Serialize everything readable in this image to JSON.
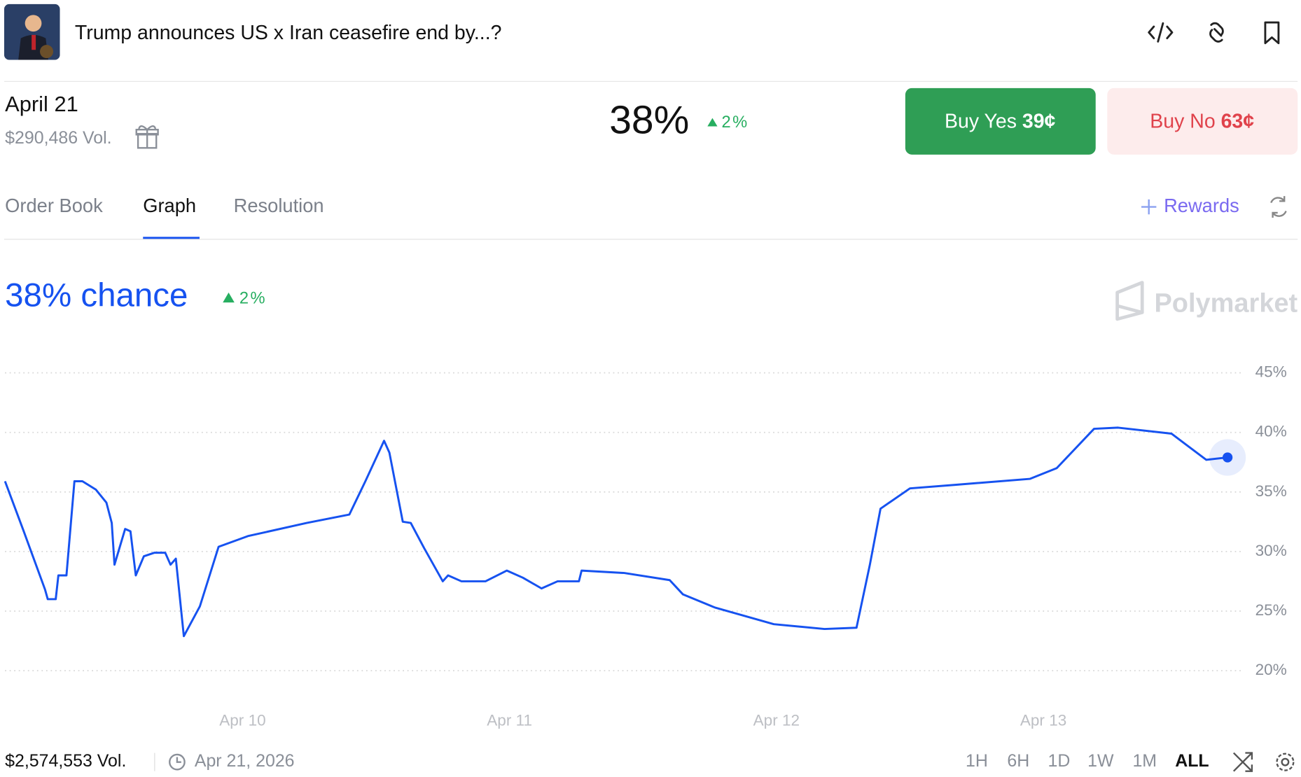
{
  "header": {
    "title": "Trump announces US x Iran ceasefire end by...?"
  },
  "market": {
    "date": "April 21",
    "volume": "$290,486 Vol.",
    "chance": "38%",
    "change": "2%",
    "buy_yes": "Buy Yes",
    "yes_price": "39¢",
    "buy_no": "Buy No",
    "no_price": "63¢"
  },
  "tabs": [
    "Order Book",
    "Graph",
    "Resolution"
  ],
  "rewards": "Rewards",
  "chart_data": {
    "type": "line",
    "title": "38% chance",
    "change": "2%",
    "brand": "Polymarket",
    "color": "#1652f0",
    "x": [
      9.11,
      9.18,
      9.26,
      9.27,
      9.3,
      9.31,
      9.34,
      9.37,
      9.4,
      9.45,
      9.49,
      9.51,
      9.52,
      9.56,
      9.58,
      9.6,
      9.63,
      9.67,
      9.71,
      9.73,
      9.75,
      9.78,
      9.84,
      9.91,
      10.02,
      10.24,
      10.4,
      10.46,
      10.53,
      10.55,
      10.6,
      10.63,
      10.68,
      10.75,
      10.77,
      10.82,
      10.91,
      10.99,
      11.05,
      11.12,
      11.18,
      11.26,
      11.27,
      11.43,
      11.6,
      11.65,
      11.77,
      11.99,
      12.18,
      12.3,
      12.35,
      12.39,
      12.5,
      12.67,
      12.95,
      13.05,
      13.19,
      13.28,
      13.48,
      13.61,
      13.69
    ],
    "values": [
      35.9,
      31.7,
      26.8,
      26.0,
      26.0,
      28.0,
      28.0,
      35.9,
      35.9,
      35.2,
      34.1,
      32.4,
      28.9,
      31.9,
      31.7,
      28.0,
      29.6,
      29.9,
      29.9,
      28.9,
      29.4,
      22.9,
      25.4,
      30.4,
      31.3,
      32.4,
      33.1,
      35.9,
      39.3,
      38.3,
      32.5,
      32.4,
      30.3,
      27.5,
      28.0,
      27.5,
      27.5,
      28.4,
      27.8,
      26.9,
      27.5,
      27.5,
      28.4,
      28.2,
      27.6,
      26.4,
      25.3,
      23.9,
      23.5,
      23.6,
      28.9,
      33.6,
      35.3,
      35.6,
      36.1,
      37.0,
      40.3,
      40.4,
      39.9,
      37.7,
      37.9
    ],
    "xlim": [
      9.11,
      13.8
    ],
    "xticks": [
      {
        "value": 10,
        "label": "Apr 10"
      },
      {
        "value": 11,
        "label": "Apr 11"
      },
      {
        "value": 12,
        "label": "Apr 12"
      },
      {
        "value": 13,
        "label": "Apr 13"
      }
    ],
    "ylim": [
      17.7,
      47
    ],
    "yticks": [
      {
        "value": 20,
        "label": "20%"
      },
      {
        "value": 25,
        "label": "25%"
      },
      {
        "value": 30,
        "label": "30%"
      },
      {
        "value": 35,
        "label": "35%"
      },
      {
        "value": 40,
        "label": "40%"
      },
      {
        "value": 45,
        "label": "45%"
      }
    ],
    "grid": true
  },
  "footer": {
    "volume": "$2,574,553 Vol.",
    "date": "Apr 21, 2026",
    "ranges": [
      "1H",
      "6H",
      "1D",
      "1W",
      "1M",
      "ALL"
    ]
  }
}
